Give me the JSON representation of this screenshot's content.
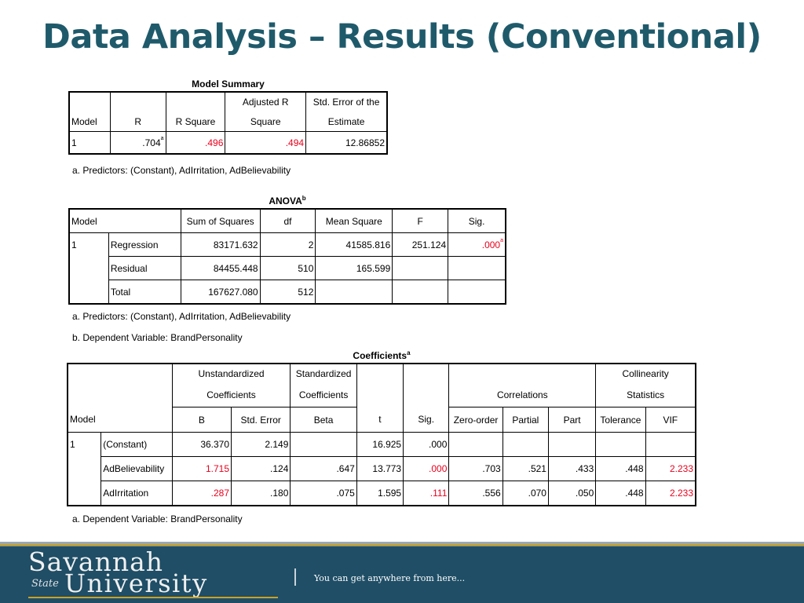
{
  "slide": {
    "title": "Data Analysis – Results (Conventional)"
  },
  "model_summary": {
    "caption": "Model Summary",
    "headers": [
      "Model",
      "R",
      "R Square",
      "Adjusted R",
      "Square",
      "Std. Error of the",
      "Estimate"
    ],
    "row": {
      "model": "1",
      "r": ".704",
      "r_sup": "a",
      "r_square": ".496",
      "adj_r_square": ".494",
      "std_error": "12.86852"
    },
    "note_a": "a. Predictors: (Constant), AdIrritation, AdBelievability"
  },
  "anova": {
    "caption": "ANOVA",
    "caption_sup": "b",
    "headers": [
      "Model",
      "Sum of Squares",
      "df",
      "Mean Square",
      "F",
      "Sig."
    ],
    "rows": [
      {
        "model": "1",
        "source": "Regression",
        "ss": "83171.632",
        "df": "2",
        "ms": "41585.816",
        "f": "251.124",
        "sig": ".000",
        "sig_sup": "a"
      },
      {
        "model": "",
        "source": "Residual",
        "ss": "84455.448",
        "df": "510",
        "ms": "165.599",
        "f": "",
        "sig": ""
      },
      {
        "model": "",
        "source": "Total",
        "ss": "167627.080",
        "df": "512",
        "ms": "",
        "f": "",
        "sig": ""
      }
    ],
    "note_a": "a. Predictors: (Constant), AdIrritation, AdBelievability",
    "note_b": "b. Dependent Variable: BrandPersonality"
  },
  "coefficients": {
    "caption": "Coefficients",
    "caption_sup": "a",
    "group_headers": {
      "unstd_1": "Unstandardized",
      "unstd_2": "Coefficients",
      "std_1": "Standardized",
      "std_2": "Coefficients",
      "corr": "Correlations",
      "coll_1": "Collinearity",
      "coll_2": "Statistics"
    },
    "headers": [
      "Model",
      "B",
      "Std. Error",
      "Beta",
      "t",
      "Sig.",
      "Zero-order",
      "Partial",
      "Part",
      "Tolerance",
      "VIF"
    ],
    "rows": [
      {
        "model": "1",
        "term": "(Constant)",
        "b": "36.370",
        "se": "2.149",
        "beta": "",
        "t": "16.925",
        "sig": ".000",
        "zero": "",
        "partial": "",
        "part": "",
        "tol": "",
        "vif": ""
      },
      {
        "model": "",
        "term": "AdBelievability",
        "b": "1.715",
        "se": ".124",
        "beta": ".647",
        "t": "13.773",
        "sig": ".000",
        "zero": ".703",
        "partial": ".521",
        "part": ".433",
        "tol": ".448",
        "vif": "2.233"
      },
      {
        "model": "",
        "term": "AdIrritation",
        "b": ".287",
        "se": ".180",
        "beta": ".075",
        "t": "1.595",
        "sig": ".111",
        "zero": ".556",
        "partial": ".070",
        "part": ".050",
        "tol": ".448",
        "vif": "2.233"
      }
    ],
    "note_a": "a. Dependent Variable: BrandPersonality"
  },
  "footer": {
    "logo_line1": "Savannah",
    "logo_state": "State",
    "logo_line2": "University",
    "tagline": "You can get anywhere from here..."
  },
  "colors": {
    "title": "#1f5a6b",
    "highlight": "#e8001c",
    "footer_bg": "#1f4e66",
    "gold": "#c9a227"
  }
}
